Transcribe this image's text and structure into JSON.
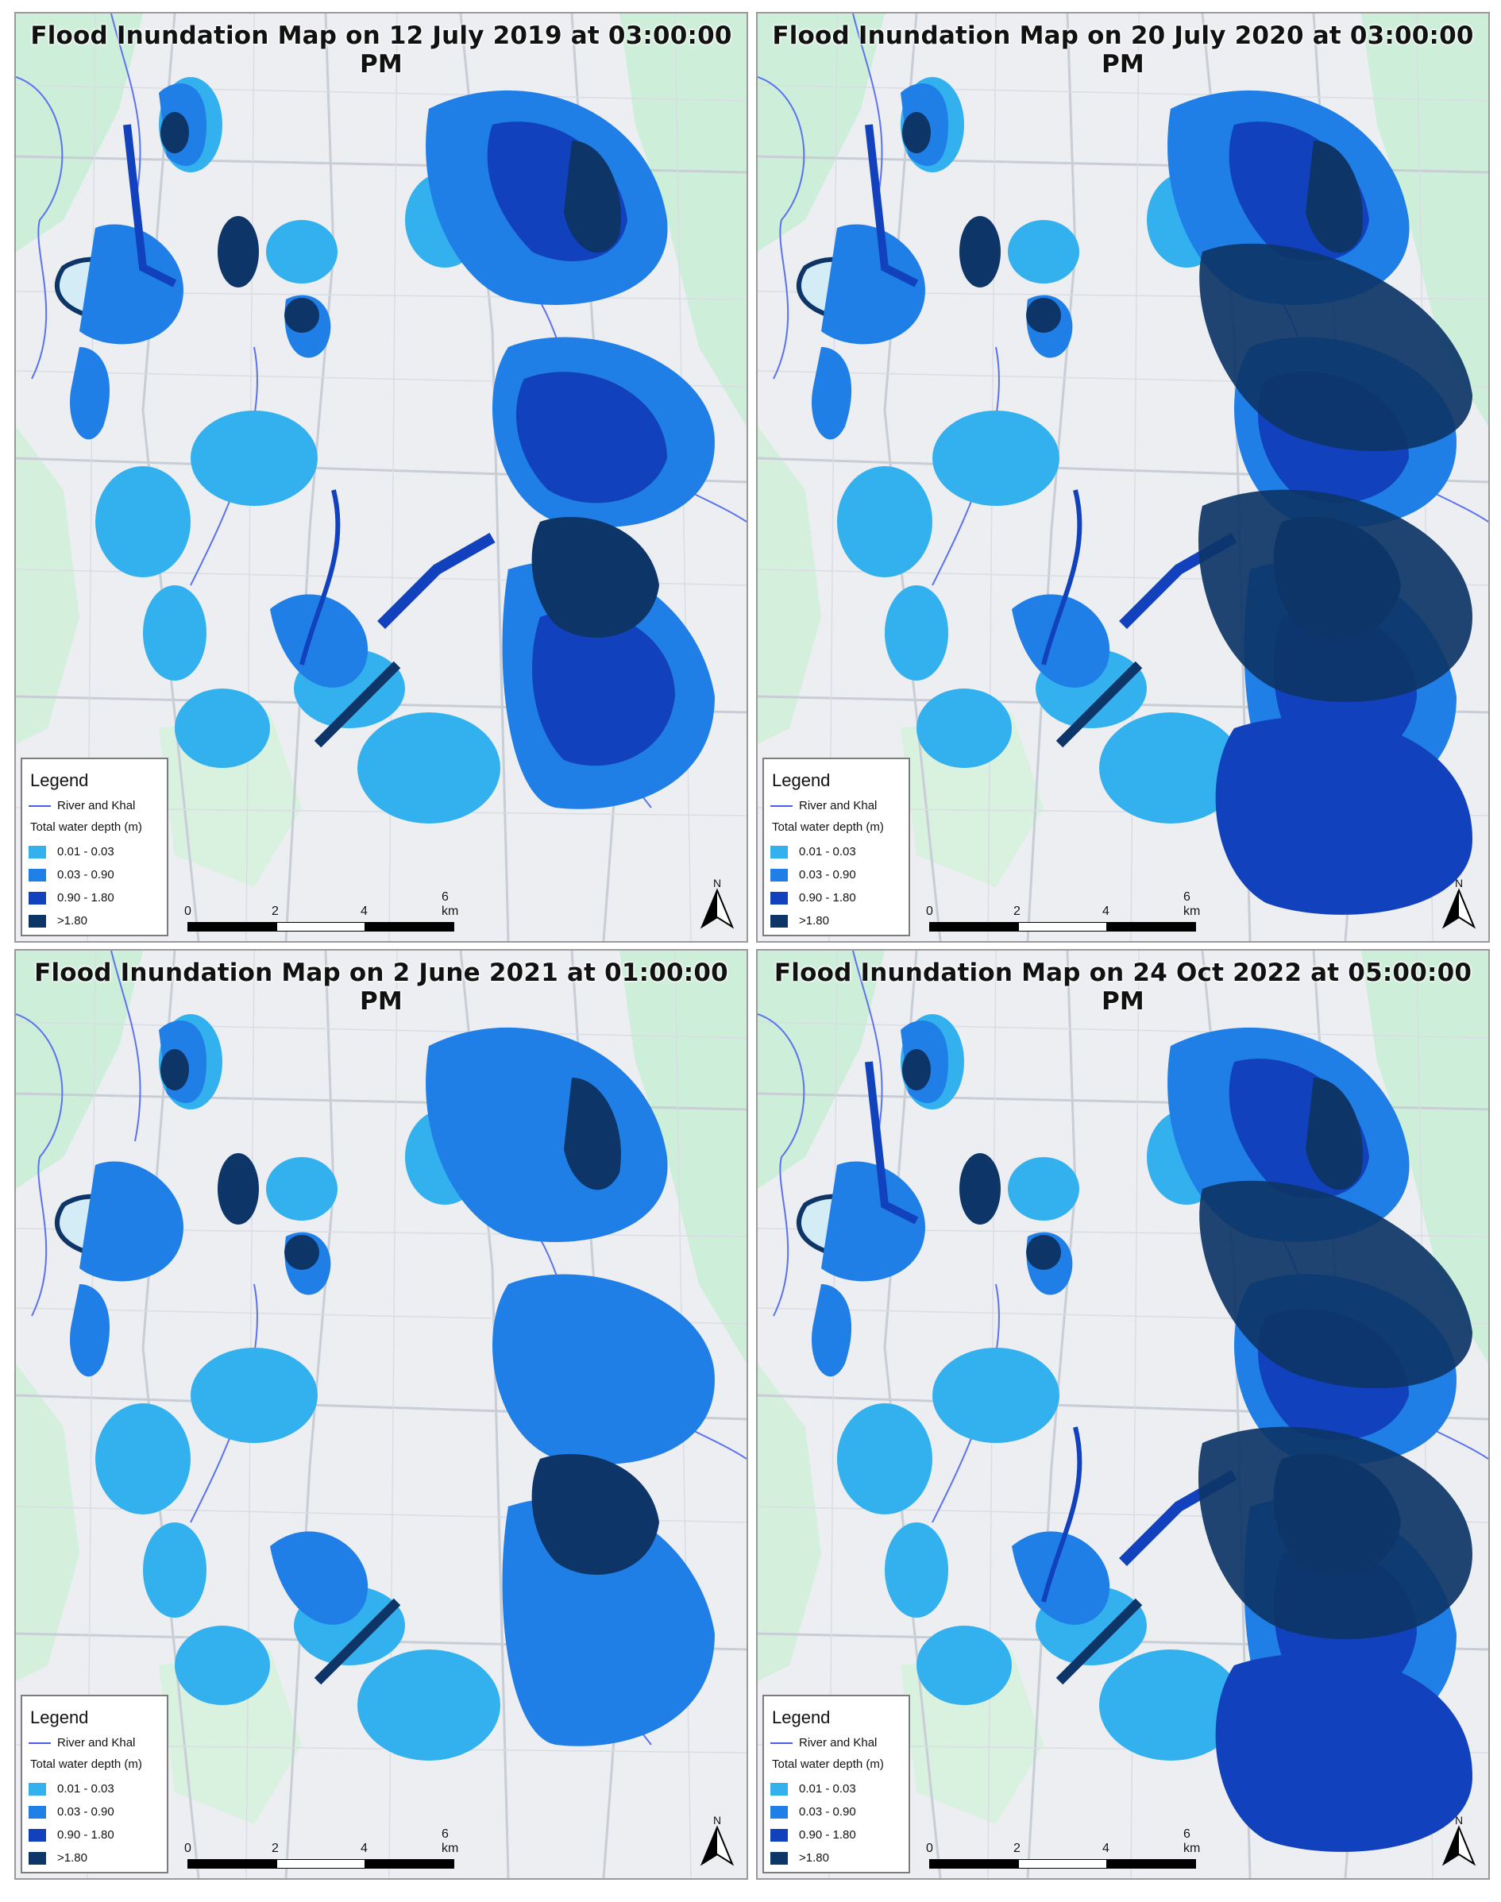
{
  "legend": {
    "title": "Legend",
    "river_label": "River and Khal",
    "depth_title": "Total water depth (m)",
    "classes": [
      {
        "label": "0.01 - 0.03",
        "color": "#33b1ee"
      },
      {
        "label": "0.03 - 0.90",
        "color": "#1f7fe6"
      },
      {
        "label": "0.90 - 1.80",
        "color": "#1241bd"
      },
      {
        "label": ">1.80",
        "color": "#0d3567"
      }
    ],
    "river_color": "#4a5ee8"
  },
  "scale": {
    "ticks": [
      "0",
      "2",
      "4",
      "6 km"
    ]
  },
  "north_arrow": {
    "label": "N"
  },
  "panels": [
    {
      "title": "Flood Inundation Map on 12 July 2019 at 03:00:00 PM"
    },
    {
      "title": "Flood Inundation Map on 20 July 2020 at 03:00:00 PM"
    },
    {
      "title": "Flood Inundation Map on 2 June 2021 at 01:00:00 PM"
    },
    {
      "title": "Flood Inundation Map on 24 Oct 2022 at 05:00:00 PM"
    }
  ]
}
